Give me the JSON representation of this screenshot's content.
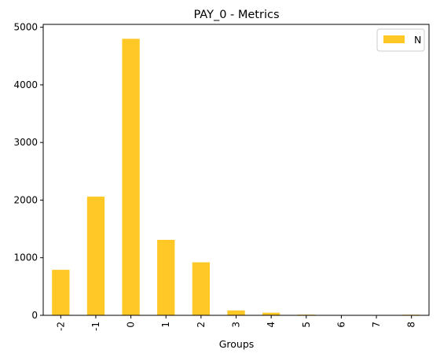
{
  "chart_data": {
    "type": "bar",
    "title": "PAY_0 - Metrics",
    "xlabel": "Groups",
    "ylabel": "",
    "categories": [
      "-2",
      "-1",
      "0",
      "1",
      "2",
      "3",
      "4",
      "5",
      "6",
      "7",
      "8"
    ],
    "series": [
      {
        "name": "N",
        "values": [
          790,
          2060,
          4800,
          1310,
          920,
          85,
          45,
          12,
          4,
          3,
          11
        ],
        "color": "#ffc826"
      }
    ],
    "ylim": [
      0,
      5050
    ],
    "yticks": [
      0,
      1000,
      2000,
      3000,
      4000,
      5000
    ],
    "grid": false,
    "legend_position": "top-right"
  }
}
